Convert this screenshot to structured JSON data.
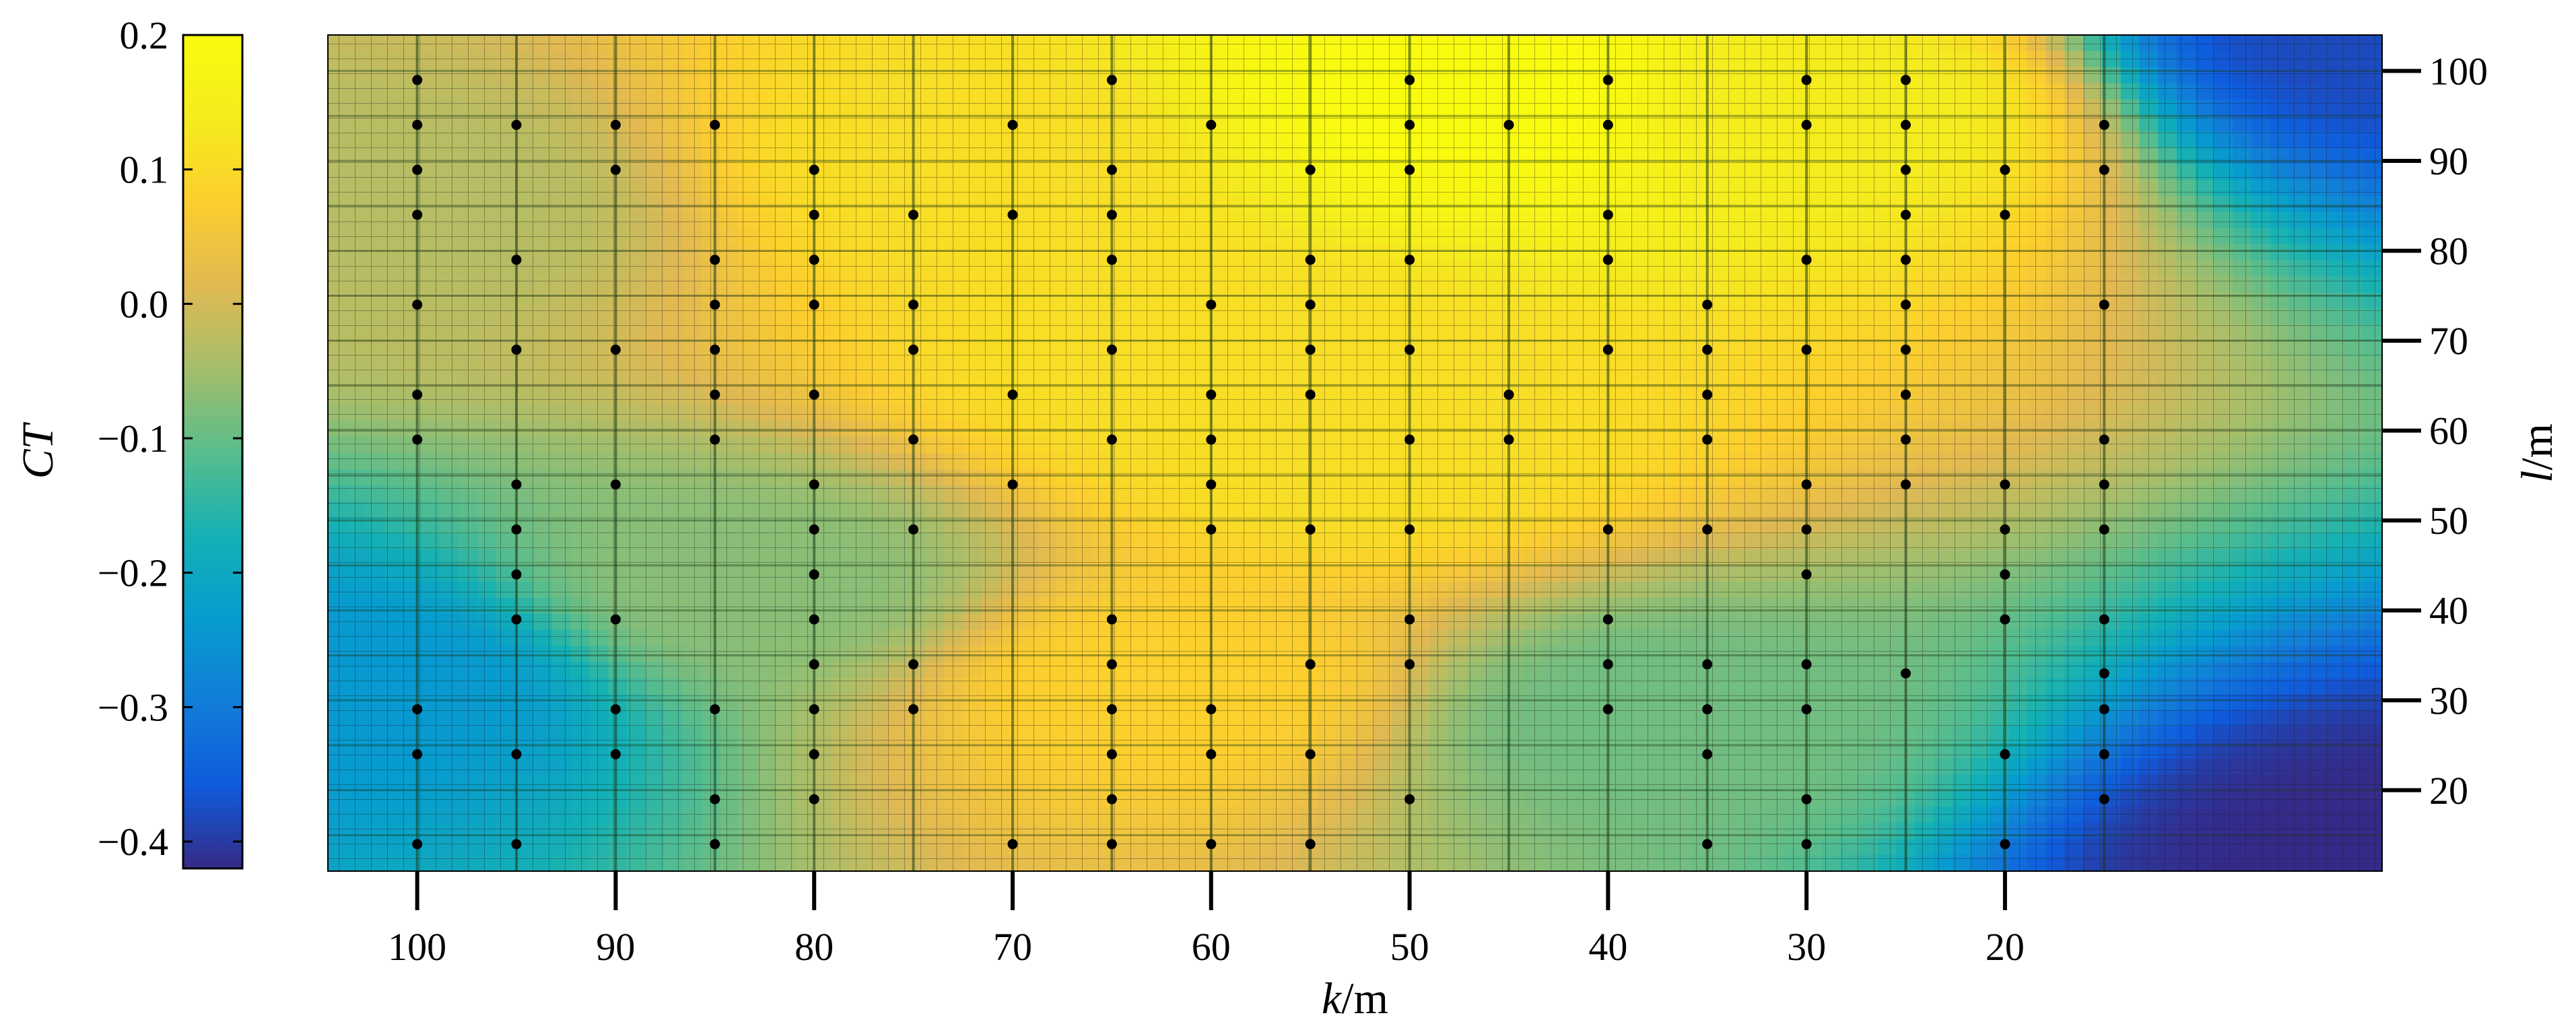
{
  "chart_data": {
    "type": "heatmap",
    "colorbar": {
      "label": "CT",
      "range": [
        -0.42,
        0.2
      ],
      "ticks": [
        "0.2",
        "0.1",
        "0.0",
        "−0.1",
        "−0.2",
        "−0.3",
        "−0.4"
      ],
      "tick_values": [
        0.2,
        0.1,
        0.0,
        -0.1,
        -0.2,
        -0.3,
        -0.4
      ],
      "colormap": "parula"
    },
    "x_axis": {
      "label_var": "k",
      "label_unit": "/m",
      "reversed": true,
      "range": [
        104.5,
        1
      ],
      "ticks": [
        "100",
        "90",
        "80",
        "70",
        "60",
        "50",
        "40",
        "30",
        "20"
      ],
      "tick_values": [
        100,
        90,
        80,
        70,
        60,
        50,
        40,
        30,
        20
      ]
    },
    "y_axis": {
      "label_var": "l",
      "label_unit": "/m",
      "side": "right",
      "range": [
        11,
        104
      ],
      "ticks": [
        "100",
        "90",
        "80",
        "70",
        "60",
        "50",
        "40",
        "30",
        "20"
      ],
      "tick_values": [
        100,
        90,
        80,
        70,
        60,
        50,
        40,
        30,
        20
      ]
    },
    "field_peaks": [
      {
        "k": 47,
        "l": 98,
        "ct": 0.2
      },
      {
        "k": 62,
        "l": 68,
        "ct": 0.11
      },
      {
        "k": 53,
        "l": 58,
        "ct": 0.11
      },
      {
        "k": 29,
        "l": 96,
        "ct": 0.14
      },
      {
        "k": 72,
        "l": 90,
        "ct": 0.11
      },
      {
        "k": 62,
        "l": 32,
        "ct": 0.08
      },
      {
        "k": 1,
        "l": 12,
        "ct": -0.42
      },
      {
        "k": 1,
        "l": 104,
        "ct": -0.38
      },
      {
        "k": 103,
        "l": 32,
        "ct": -0.24
      },
      {
        "k": 83,
        "l": 43,
        "ct": -0.07
      },
      {
        "k": 38,
        "l": 28,
        "ct": -0.09
      },
      {
        "k": 100,
        "l": 85,
        "ct": -0.03
      }
    ],
    "points": [
      [
        100,
        99
      ],
      [
        100,
        94
      ],
      [
        100,
        89
      ],
      [
        100,
        84
      ],
      [
        100,
        74
      ],
      [
        100,
        64
      ],
      [
        100,
        59
      ],
      [
        100,
        29
      ],
      [
        100,
        24
      ],
      [
        100,
        14
      ],
      [
        95,
        94
      ],
      [
        95,
        79
      ],
      [
        95,
        69
      ],
      [
        95,
        54
      ],
      [
        95,
        49
      ],
      [
        95,
        44
      ],
      [
        95,
        39
      ],
      [
        95,
        24
      ],
      [
        95,
        14
      ],
      [
        90,
        94
      ],
      [
        90,
        89
      ],
      [
        90,
        69
      ],
      [
        90,
        54
      ],
      [
        90,
        39
      ],
      [
        90,
        29
      ],
      [
        90,
        24
      ],
      [
        85,
        94
      ],
      [
        85,
        79
      ],
      [
        85,
        74
      ],
      [
        85,
        69
      ],
      [
        85,
        64
      ],
      [
        85,
        59
      ],
      [
        85,
        29
      ],
      [
        85,
        19
      ],
      [
        85,
        14
      ],
      [
        80,
        89
      ],
      [
        80,
        84
      ],
      [
        80,
        79
      ],
      [
        80,
        74
      ],
      [
        80,
        64
      ],
      [
        80,
        54
      ],
      [
        80,
        49
      ],
      [
        80,
        44
      ],
      [
        80,
        39
      ],
      [
        80,
        34
      ],
      [
        80,
        29
      ],
      [
        80,
        24
      ],
      [
        80,
        19
      ],
      [
        75,
        84
      ],
      [
        75,
        74
      ],
      [
        75,
        69
      ],
      [
        75,
        59
      ],
      [
        75,
        49
      ],
      [
        75,
        34
      ],
      [
        75,
        29
      ],
      [
        70,
        94
      ],
      [
        70,
        84
      ],
      [
        70,
        64
      ],
      [
        70,
        54
      ],
      [
        70,
        14
      ],
      [
        65,
        99
      ],
      [
        65,
        89
      ],
      [
        65,
        84
      ],
      [
        65,
        79
      ],
      [
        65,
        69
      ],
      [
        65,
        59
      ],
      [
        65,
        39
      ],
      [
        65,
        34
      ],
      [
        65,
        29
      ],
      [
        65,
        24
      ],
      [
        65,
        19
      ],
      [
        65,
        14
      ],
      [
        60,
        94
      ],
      [
        60,
        74
      ],
      [
        60,
        64
      ],
      [
        60,
        59
      ],
      [
        60,
        54
      ],
      [
        60,
        49
      ],
      [
        60,
        29
      ],
      [
        60,
        24
      ],
      [
        60,
        14
      ],
      [
        55,
        89
      ],
      [
        55,
        79
      ],
      [
        55,
        74
      ],
      [
        55,
        69
      ],
      [
        55,
        64
      ],
      [
        55,
        49
      ],
      [
        55,
        34
      ],
      [
        55,
        24
      ],
      [
        55,
        14
      ],
      [
        50,
        99
      ],
      [
        50,
        94
      ],
      [
        50,
        89
      ],
      [
        50,
        79
      ],
      [
        50,
        69
      ],
      [
        50,
        59
      ],
      [
        50,
        49
      ],
      [
        50,
        39
      ],
      [
        50,
        34
      ],
      [
        50,
        19
      ],
      [
        45,
        94
      ],
      [
        45,
        64
      ],
      [
        45,
        59
      ],
      [
        40,
        99
      ],
      [
        40,
        94
      ],
      [
        40,
        84
      ],
      [
        40,
        79
      ],
      [
        40,
        69
      ],
      [
        40,
        49
      ],
      [
        40,
        39
      ],
      [
        40,
        34
      ],
      [
        40,
        29
      ],
      [
        35,
        74
      ],
      [
        35,
        69
      ],
      [
        35,
        64
      ],
      [
        35,
        59
      ],
      [
        35,
        49
      ],
      [
        35,
        34
      ],
      [
        35,
        29
      ],
      [
        35,
        24
      ],
      [
        35,
        14
      ],
      [
        30,
        99
      ],
      [
        30,
        94
      ],
      [
        30,
        79
      ],
      [
        30,
        69
      ],
      [
        30,
        54
      ],
      [
        30,
        49
      ],
      [
        30,
        44
      ],
      [
        30,
        34
      ],
      [
        30,
        29
      ],
      [
        30,
        19
      ],
      [
        30,
        14
      ],
      [
        25,
        99
      ],
      [
        25,
        94
      ],
      [
        25,
        89
      ],
      [
        25,
        84
      ],
      [
        25,
        79
      ],
      [
        25,
        74
      ],
      [
        25,
        69
      ],
      [
        25,
        64
      ],
      [
        25,
        59
      ],
      [
        25,
        54
      ],
      [
        25,
        33
      ],
      [
        20,
        89
      ],
      [
        20,
        84
      ],
      [
        20,
        54
      ],
      [
        20,
        49
      ],
      [
        20,
        44
      ],
      [
        20,
        39
      ],
      [
        20,
        24
      ],
      [
        20,
        14
      ],
      [
        15,
        94
      ],
      [
        15,
        89
      ],
      [
        15,
        74
      ],
      [
        15,
        59
      ],
      [
        15,
        54
      ],
      [
        15,
        49
      ],
      [
        15,
        39
      ],
      [
        15,
        33
      ],
      [
        15,
        29
      ],
      [
        15,
        24
      ],
      [
        15,
        19
      ]
    ]
  }
}
